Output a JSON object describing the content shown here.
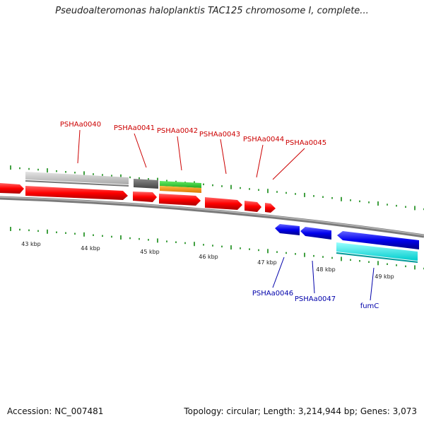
{
  "title": "Pseudoalteromonas haloplanktis TAC125 chromosome I, complete...",
  "footer": {
    "accession": "Accession: NC_007481",
    "summary": "Topology: circular; Length: 3,214,944 bp; Genes: 3,073"
  },
  "scale_labels": [
    "43 kbp",
    "44 kbp",
    "45 kbp",
    "46 kbp",
    "47 kbp",
    "48 kbp",
    "49 kbp"
  ],
  "forward_genes": [
    "PSHAa0040",
    "PSHAa0041",
    "PSHAa0042",
    "PSHAa0043",
    "PSHAa0044",
    "PSHAa0045"
  ],
  "reverse_genes": [
    "PSHAa0046",
    "PSHAa0047",
    "fumC"
  ],
  "colors": {
    "forward_cds": "#ff0000",
    "reverse_cds": "#0000ee",
    "gene_light": "#c8c8c8",
    "gene_dark": "#666666",
    "green": "#33cc33",
    "orange": "#ff9900",
    "cyan": "#00ffff",
    "backbone": "#888888",
    "ticks": "#118811",
    "forward_label": "#cc0000",
    "reverse_label": "#0000aa"
  }
}
